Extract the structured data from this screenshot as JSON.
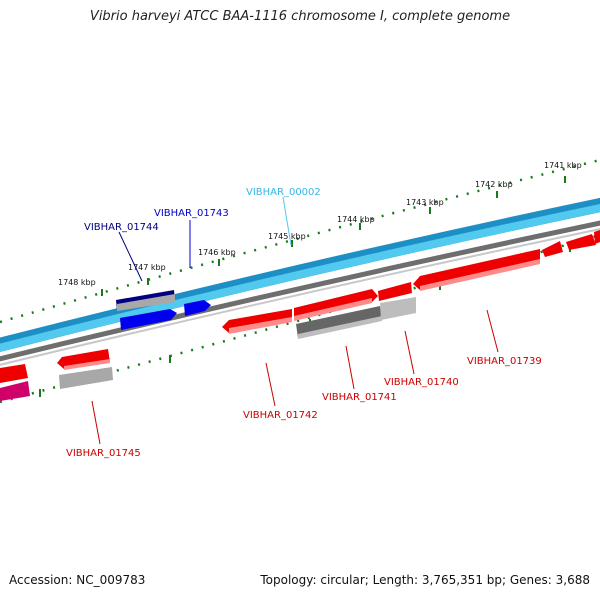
{
  "title": "Vibrio harveyi ATCC BAA-1116 chromosome I, complete genome",
  "footer": {
    "accession": "Accession: NC_009783",
    "topology": "Topology: circular; Length: 3,765,351 bp; Genes: 3,688"
  },
  "colors": {
    "forward_strand": "#1e90c8",
    "forward_fill": "#4cc6ee",
    "backbone": "#7a7a7a",
    "reverse_gene": "#ee0000",
    "pseudo_gene": "#666666",
    "navy_gene": "#000080",
    "blue_gene": "#0000ee",
    "magenta_gene": "#d0006a",
    "tick": "#1a7a1a"
  },
  "kbp_labels": [
    "1748 kbp",
    "1747 kbp",
    "1746 kbp",
    "1745 kbp",
    "1744 kbp",
    "1743 kbp",
    "1742 kbp",
    "1741 kbp"
  ],
  "gene_labels": {
    "VIBHAR_00002": "VIBHAR_00002",
    "VIBHAR_01743": "VIBHAR_01743",
    "VIBHAR_01744": "VIBHAR_01744",
    "VIBHAR_01739": "VIBHAR_01739",
    "VIBHAR_01740": "VIBHAR_01740",
    "VIBHAR_01741": "VIBHAR_01741",
    "VIBHAR_01742": "VIBHAR_01742",
    "VIBHAR_01745": "VIBHAR_01745"
  }
}
